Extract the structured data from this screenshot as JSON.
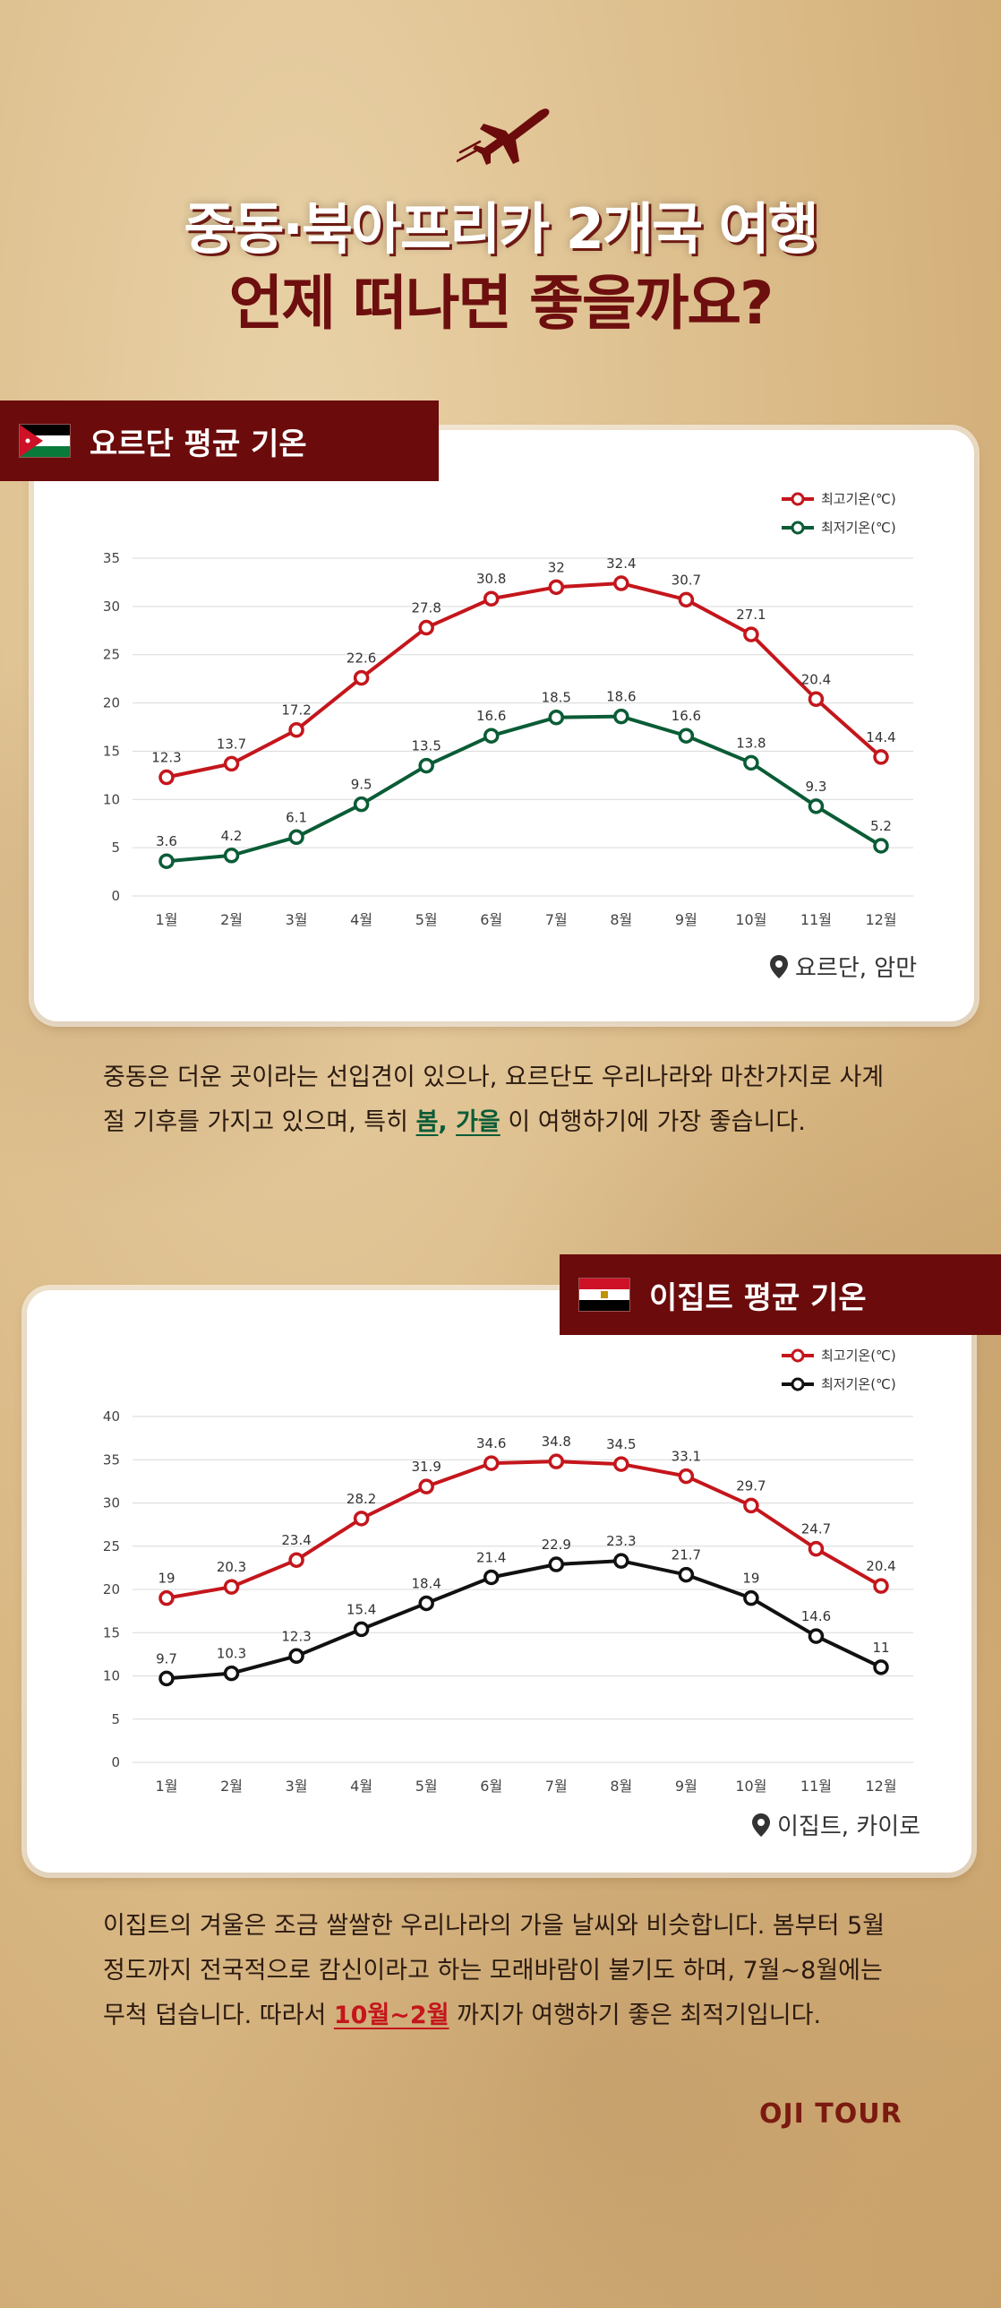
{
  "header": {
    "title_line1": "중동·북아프리카 2개국 여행",
    "title_line2": "언제 떠나면 좋을까요?"
  },
  "jordan": {
    "banner": "요르단 평균 기온",
    "location": "요르단, 암만",
    "description_pre": "중동은 더운 곳이라는 선입견이 있으나, 요르단도 우리나라와 마찬가지로 사계절 기후를 가지고 있으며, 특히 ",
    "description_h1": "봄",
    "description_sep": ", ",
    "description_h2": "가을",
    "description_post": " 이 여행하기에 가장 좋습니다."
  },
  "egypt": {
    "banner": "이집트 평균 기온",
    "location": "이집트, 카이로",
    "description_pre": "이집트의 겨울은 조금 쌀쌀한 우리나라의 가을 날씨와 비슷합니다. 봄부터 5월 정도까지 전국적으로 캄신이라고 하는 모래바람이 불기도 하며, 7월~8월에는 무척 덥습니다. 따라서 ",
    "description_h1": "10월~2월",
    "description_post": " 까지가 여행하기 좋은 최적기입니다."
  },
  "brand": "OJI TOUR",
  "colors": {
    "banner": "#6b0b0b",
    "high": "#c4161c",
    "low_jordan": "#0a5c36",
    "low_egypt": "#111111"
  },
  "chart_data": [
    {
      "type": "line",
      "categories": [
        "1월",
        "2월",
        "3월",
        "4월",
        "5월",
        "6월",
        "7월",
        "8월",
        "9월",
        "10월",
        "11월",
        "12월"
      ],
      "series": [
        {
          "name": "최고기온(℃)",
          "values": [
            12.3,
            13.7,
            17.2,
            22.6,
            27.8,
            30.8,
            32,
            32.4,
            30.7,
            27.1,
            20.4,
            14.4
          ]
        },
        {
          "name": "최저기온(℃)",
          "values": [
            3.6,
            4.2,
            6.1,
            9.5,
            13.5,
            16.6,
            18.5,
            18.6,
            16.6,
            13.8,
            9.3,
            5.2
          ]
        }
      ],
      "ylim": [
        0,
        35
      ],
      "yticks": [
        0,
        5,
        10,
        15,
        20,
        25,
        30,
        35
      ],
      "grid": true,
      "legend": "top-right"
    },
    {
      "type": "line",
      "categories": [
        "1월",
        "2월",
        "3월",
        "4월",
        "5월",
        "6월",
        "7월",
        "8월",
        "9월",
        "10월",
        "11월",
        "12월"
      ],
      "series": [
        {
          "name": "최고기온(℃)",
          "values": [
            19,
            20.3,
            23.4,
            28.2,
            31.9,
            34.6,
            34.8,
            34.5,
            33.1,
            29.7,
            24.7,
            20.4
          ]
        },
        {
          "name": "최저기온(℃)",
          "values": [
            9.7,
            10.3,
            12.3,
            15.4,
            18.4,
            21.4,
            22.9,
            23.3,
            21.7,
            19,
            14.6,
            11
          ]
        }
      ],
      "ylim": [
        0,
        40
      ],
      "yticks": [
        0,
        5,
        10,
        15,
        20,
        25,
        30,
        35,
        40
      ],
      "grid": true,
      "legend": "top-right"
    }
  ]
}
